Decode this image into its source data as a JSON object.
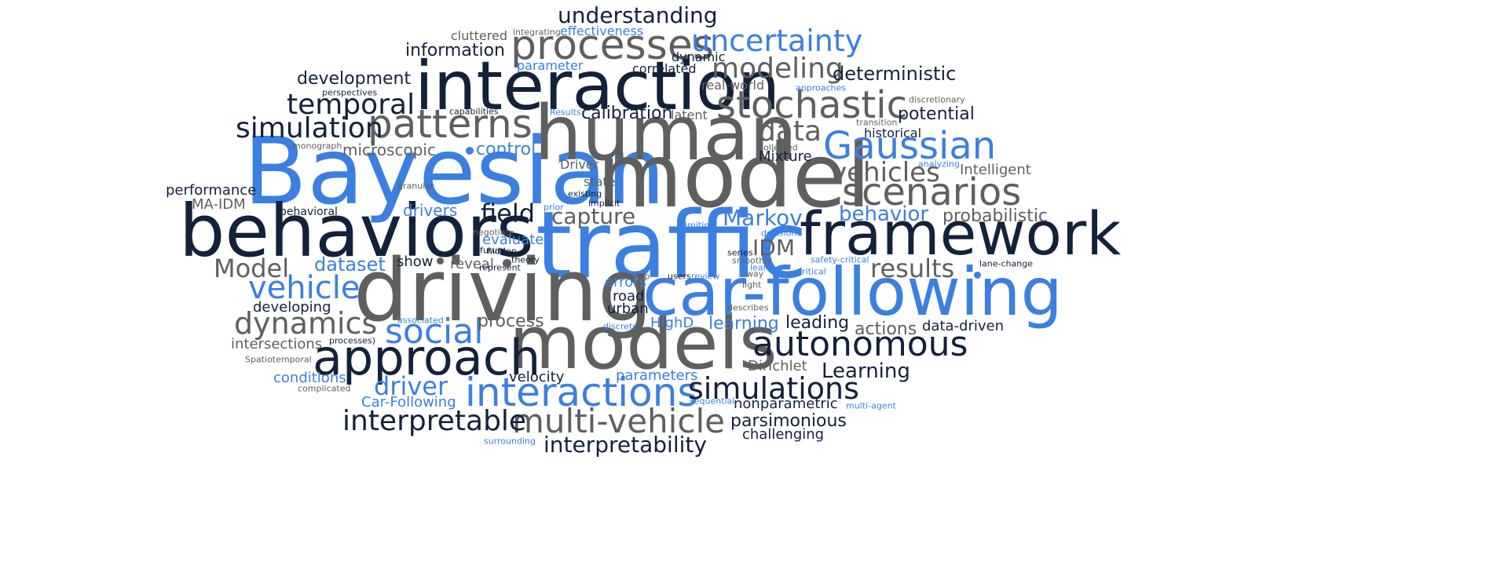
{
  "palette": {
    "navy": "#14213a",
    "gray": "#5f5f5f",
    "blue": "#3b7fe0"
  },
  "words": [
    {
      "t": "Bayesian",
      "c": "blue",
      "s": 118
    },
    {
      "t": "traffic",
      "c": "blue",
      "s": 118
    },
    {
      "t": "model",
      "c": "gray",
      "s": 112
    },
    {
      "t": "driving",
      "c": "gray",
      "s": 110
    },
    {
      "t": "human",
      "c": "gray",
      "s": 96
    },
    {
      "t": "models",
      "c": "gray",
      "s": 94
    },
    {
      "t": "behaviors",
      "c": "navy",
      "s": 92
    },
    {
      "t": "interaction",
      "c": "navy",
      "s": 86
    },
    {
      "t": "car-following",
      "c": "blue",
      "s": 84
    },
    {
      "t": "framework",
      "c": "navy",
      "s": 76
    },
    {
      "t": "approach",
      "c": "navy",
      "s": 62
    },
    {
      "t": "processes",
      "c": "gray",
      "s": 52
    },
    {
      "t": "patterns",
      "c": "gray",
      "s": 50
    },
    {
      "t": "interactions",
      "c": "blue",
      "s": 50
    },
    {
      "t": "stochastic",
      "c": "gray",
      "s": 48
    },
    {
      "t": "Gaussian",
      "c": "blue",
      "s": 48
    },
    {
      "t": "scenarios",
      "c": "gray",
      "s": 48
    },
    {
      "t": "autonomous",
      "c": "navy",
      "s": 44
    },
    {
      "t": "social",
      "c": "blue",
      "s": 44
    },
    {
      "t": "simulations",
      "c": "navy",
      "s": 38
    },
    {
      "t": "multi-vehicle",
      "c": "gray",
      "s": 42
    },
    {
      "t": "uncertainty",
      "c": "blue",
      "s": 38
    },
    {
      "t": "dynamics",
      "c": "gray",
      "s": 38
    },
    {
      "t": "vehicle",
      "c": "blue",
      "s": 40
    },
    {
      "t": "modeling",
      "c": "gray",
      "s": 36
    },
    {
      "t": "temporal",
      "c": "navy",
      "s": 36
    },
    {
      "t": "simulation",
      "c": "navy",
      "s": 36
    },
    {
      "t": "data",
      "c": "gray",
      "s": 36
    },
    {
      "t": "vehicles",
      "c": "gray",
      "s": 34
    },
    {
      "t": "interpretable",
      "c": "navy",
      "s": 36
    },
    {
      "t": "results",
      "c": "gray",
      "s": 32
    },
    {
      "t": "Model",
      "c": "gray",
      "s": 32
    },
    {
      "t": "field",
      "c": "navy",
      "s": 32
    },
    {
      "t": "driver",
      "c": "blue",
      "s": 32
    },
    {
      "t": "interpretability",
      "c": "navy",
      "s": 28
    },
    {
      "t": "understanding",
      "c": "navy",
      "s": 28
    },
    {
      "t": "Markov",
      "c": "blue",
      "s": 28
    },
    {
      "t": "capture",
      "c": "gray",
      "s": 28
    },
    {
      "t": "IDM",
      "c": "gray",
      "s": 28
    },
    {
      "t": "behavior",
      "c": "blue",
      "s": 26
    },
    {
      "t": "Learning",
      "c": "navy",
      "s": 26
    },
    {
      "t": "dataset",
      "c": "blue",
      "s": 24
    },
    {
      "t": "deterministic",
      "c": "navy",
      "s": 24
    },
    {
      "t": "development",
      "c": "navy",
      "s": 22
    },
    {
      "t": "information",
      "c": "navy",
      "s": 22
    },
    {
      "t": "potential",
      "c": "navy",
      "s": 22
    },
    {
      "t": "calibration",
      "c": "navy",
      "s": 22
    },
    {
      "t": "control",
      "c": "blue",
      "s": 22
    },
    {
      "t": "process",
      "c": "gray",
      "s": 22
    },
    {
      "t": "learning",
      "c": "blue",
      "s": 22
    },
    {
      "t": "leading",
      "c": "navy",
      "s": 22
    },
    {
      "t": "actions",
      "c": "gray",
      "s": 22
    },
    {
      "t": "probabilistic",
      "c": "gray",
      "s": 22
    },
    {
      "t": "parsimonious",
      "c": "navy",
      "s": 22
    },
    {
      "t": "microscopic",
      "c": "gray",
      "s": 20
    },
    {
      "t": "drivers",
      "c": "blue",
      "s": 20
    },
    {
      "t": "conditions",
      "c": "blue",
      "s": 18
    },
    {
      "t": "developing",
      "c": "navy",
      "s": 18
    },
    {
      "t": "intersections",
      "c": "gray",
      "s": 18
    },
    {
      "t": "performance",
      "c": "navy",
      "s": 18
    },
    {
      "t": "road",
      "c": "navy",
      "s": 18
    },
    {
      "t": "urban",
      "c": "navy",
      "s": 18
    },
    {
      "t": "errors",
      "c": "blue",
      "s": 18
    },
    {
      "t": "evaluate",
      "c": "blue",
      "s": 18
    },
    {
      "t": "reveal",
      "c": "gray",
      "s": 18
    },
    {
      "t": "show",
      "c": "navy",
      "s": 18
    },
    {
      "t": "velocity",
      "c": "navy",
      "s": 18
    },
    {
      "t": "parameters",
      "c": "blue",
      "s": 18
    },
    {
      "t": "Car-Following",
      "c": "blue",
      "s": 18
    },
    {
      "t": "challenging",
      "c": "navy",
      "s": 18
    },
    {
      "t": "nonparametric",
      "c": "navy",
      "s": 18
    },
    {
      "t": "data-driven",
      "c": "navy",
      "s": 18
    },
    {
      "t": "Dirichlet",
      "c": "gray",
      "s": 18
    },
    {
      "t": "MA-IDM",
      "c": "gray",
      "s": 18
    },
    {
      "t": "HighD",
      "c": "blue",
      "s": 18
    },
    {
      "t": "Intelligent",
      "c": "gray",
      "s": 18
    },
    {
      "t": "Mixture",
      "c": "navy",
      "s": 18
    },
    {
      "t": "historical",
      "c": "navy",
      "s": 16
    },
    {
      "t": "state",
      "c": "gray",
      "s": 16
    },
    {
      "t": "Driver",
      "c": "gray",
      "s": 16
    },
    {
      "t": "latent",
      "c": "gray",
      "s": 16
    },
    {
      "t": "real-world",
      "c": "gray",
      "s": 16
    },
    {
      "t": "correlated",
      "c": "navy",
      "s": 16
    },
    {
      "t": "parameter",
      "c": "blue",
      "s": 16
    },
    {
      "t": "effectiveness",
      "c": "blue",
      "s": 16
    },
    {
      "t": "cluttered",
      "c": "gray",
      "s": 16
    },
    {
      "t": "dynamic",
      "c": "navy",
      "s": 16
    },
    {
      "t": "behavioral",
      "c": "navy",
      "s": 14
    },
    {
      "t": "capabilities",
      "c": "navy",
      "s": 11
    },
    {
      "t": "perspectives",
      "c": "navy",
      "s": 11
    },
    {
      "t": "monograph",
      "c": "gray",
      "s": 11
    },
    {
      "t": "granular",
      "c": "gray",
      "s": 11
    },
    {
      "t": "negotiate",
      "c": "gray",
      "s": 11
    },
    {
      "t": "future",
      "c": "navy",
      "s": 11
    },
    {
      "t": "hidden",
      "c": "navy",
      "s": 11
    },
    {
      "t": "theory",
      "c": "navy",
      "s": 11
    },
    {
      "t": "represent",
      "c": "navy",
      "s": 11
    },
    {
      "t": "deep",
      "c": "gray",
      "s": 11
    },
    {
      "t": "users",
      "c": "navy",
      "s": 11
    },
    {
      "t": "review",
      "c": "blue",
      "s": 11
    },
    {
      "t": "light",
      "c": "gray",
      "s": 11
    },
    {
      "t": "describes",
      "c": "gray",
      "s": 11
    },
    {
      "t": "way",
      "c": "gray",
      "s": 11
    },
    {
      "t": "smoothly",
      "c": "gray",
      "s": 11
    },
    {
      "t": "learn",
      "c": "blue",
      "s": 11
    },
    {
      "t": "series",
      "c": "navy",
      "s": 11
    },
    {
      "t": "critical",
      "c": "blue",
      "s": 11
    },
    {
      "t": "safety-critical",
      "c": "blue",
      "s": 11
    },
    {
      "t": "lane-change",
      "c": "navy",
      "s": 11
    },
    {
      "t": "decisions",
      "c": "blue",
      "s": 11
    },
    {
      "t": "limiting",
      "c": "blue",
      "s": 11
    },
    {
      "t": "implicit",
      "c": "navy",
      "s": 11
    },
    {
      "t": "existing",
      "c": "navy",
      "s": 11
    },
    {
      "t": "prior",
      "c": "blue",
      "s": 11
    },
    {
      "t": "associated",
      "c": "blue",
      "s": 11
    },
    {
      "t": "discrete",
      "c": "blue",
      "s": 11
    },
    {
      "t": "processes)",
      "c": "navy",
      "s": 11
    },
    {
      "t": "Spatiotemporal",
      "c": "gray",
      "s": 11
    },
    {
      "t": "complicated",
      "c": "gray",
      "s": 11
    },
    {
      "t": "surrounding",
      "c": "blue",
      "s": 11
    },
    {
      "t": "sequential",
      "c": "blue",
      "s": 11
    },
    {
      "t": "multi-agent",
      "c": "blue",
      "s": 11
    },
    {
      "t": "collected",
      "c": "gray",
      "s": 11
    },
    {
      "t": "analyzing",
      "c": "blue",
      "s": 11
    },
    {
      "t": "transition",
      "c": "gray",
      "s": 11
    },
    {
      "t": "discretionary",
      "c": "gray",
      "s": 11
    },
    {
      "t": "approaches",
      "c": "blue",
      "s": 11
    },
    {
      "t": "Results",
      "c": "blue",
      "s": 11
    },
    {
      "t": "integrating",
      "c": "gray",
      "s": 11
    }
  ]
}
